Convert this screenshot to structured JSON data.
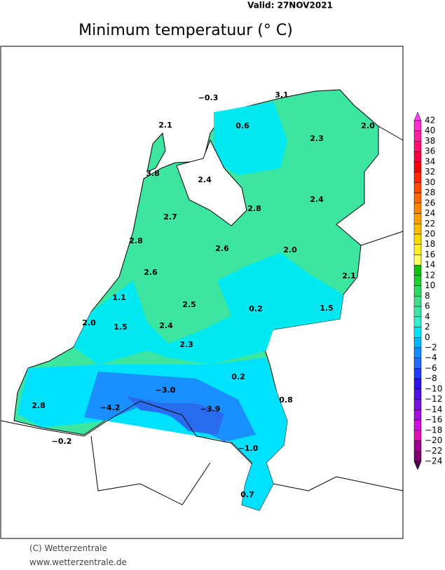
{
  "valid": "Valid:  27NOV2021",
  "title": "Minimum  temperatuur  (° C)",
  "stations": [
    "−0.3",
    "3.1",
    "2.1",
    "0.6",
    "2.0",
    "2.3",
    "3.8",
    "2.4",
    "2.4",
    "2.8",
    "2.7",
    "2.8",
    "2.6",
    "2.0",
    "2.6",
    "2.1",
    "1.1",
    "2.5",
    "0.2",
    "1.5",
    "2.0",
    "1.5",
    "2.4",
    "2.3",
    "0.2",
    "−3.0",
    "2.8",
    "−4.2",
    "−3.9",
    "0.8",
    "−0.2",
    "−1.0",
    "0.7"
  ],
  "colorbar": {
    "labels": [
      "42",
      "40",
      "38",
      "36",
      "34",
      "32",
      "30",
      "28",
      "26",
      "24",
      "22",
      "20",
      "18",
      "16",
      "14",
      "12",
      "10",
      "8",
      "6",
      "4",
      "2",
      "0",
      "−2",
      "−4",
      "−6",
      "−8",
      "−10",
      "−12",
      "−14",
      "−16",
      "−18",
      "−20",
      "−22",
      "−24"
    ],
    "colors": [
      "#ff40ff",
      "#ff30d0",
      "#ff20a0",
      "#ff1070",
      "#ff0040",
      "#ff0000",
      "#ff2800",
      "#ff4a00",
      "#ff6800",
      "#ff8400",
      "#ffa000",
      "#ffbc00",
      "#ffd800",
      "#fff020",
      "#ffff60",
      "#10c010",
      "#20cc30",
      "#30d860",
      "#40e088",
      "#40e8a8",
      "#30f0d0",
      "#00e8ff",
      "#00b8ff",
      "#1090ff",
      "#2068ff",
      "#2038ff",
      "#3010f0",
      "#5010e8",
      "#7810e0",
      "#a010e0",
      "#d010e0",
      "#e010b0",
      "#a00090",
      "#780070",
      "#500050"
    ]
  },
  "footer": {
    "copyright": "(C) Wetterzentrale",
    "url": "www.wetterzentrale.de"
  }
}
